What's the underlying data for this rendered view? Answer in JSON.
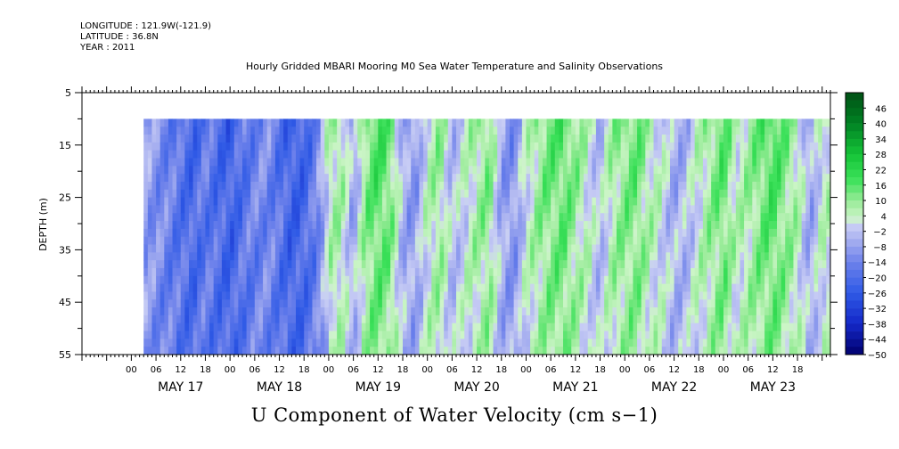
{
  "header": {
    "longitude": "LONGITUDE : 121.9W(-121.9)",
    "latitude": "LATITUDE : 36.8N",
    "year": "YEAR : 2011"
  },
  "chart_data": {
    "type": "heatmap",
    "title": "Hourly Gridded MBARI Mooring M0 Sea Water Temperature and Salinity Observations",
    "xlabel": "U Component of Water Velocity (cm s−1)",
    "ylabel": "DEPTH (m)",
    "y_ticks": [
      5,
      15,
      25,
      35,
      45,
      55
    ],
    "ylim": [
      5,
      55
    ],
    "y_data_range": [
      10,
      55
    ],
    "hour_tick_labels": [
      "00",
      "06",
      "12",
      "18",
      "00",
      "06",
      "12",
      "18",
      "00",
      "06",
      "12",
      "18",
      "00",
      "06",
      "12",
      "18",
      "00",
      "06",
      "12",
      "18",
      "00",
      "06",
      "12",
      "18",
      "00",
      "06",
      "12",
      "18"
    ],
    "day_labels": [
      "MAY 17",
      "MAY 18",
      "MAY 19",
      "MAY 20",
      "MAY 21",
      "MAY 22",
      "MAY 23"
    ],
    "colorbar_labels": [
      "46",
      "40",
      "34",
      "28",
      "22",
      "16",
      "10",
      "4",
      "−2",
      "−8",
      "−14",
      "−20",
      "−26",
      "−32",
      "−38",
      "−44",
      "−50"
    ],
    "colorbar_range": [
      -50,
      52
    ],
    "colorbar_step": 3,
    "colors": {
      "strong_negative": "#00007a",
      "negative": "#2f5ae6",
      "near_zero_neg": "#b4b8f0",
      "near_zero_pos": "#c8f0c0",
      "positive": "#22d64a",
      "strong_positive": "#005a14"
    },
    "time_hours_start": -12,
    "time_hours_end": 170,
    "data_start_hour": 3,
    "time_profile": [
      {
        "t": 3,
        "v": -6
      },
      {
        "t": 6,
        "v": -10
      },
      {
        "t": 9,
        "v": -14
      },
      {
        "t": 12,
        "v": -18
      },
      {
        "t": 15,
        "v": -22
      },
      {
        "t": 18,
        "v": -16
      },
      {
        "t": 21,
        "v": -20
      },
      {
        "t": 24,
        "v": -24
      },
      {
        "t": 27,
        "v": -18
      },
      {
        "t": 30,
        "v": -14
      },
      {
        "t": 33,
        "v": -12
      },
      {
        "t": 36,
        "v": -18
      },
      {
        "t": 39,
        "v": -24
      },
      {
        "t": 42,
        "v": -22
      },
      {
        "t": 45,
        "v": -14
      },
      {
        "t": 48,
        "v": 6
      },
      {
        "t": 51,
        "v": 8
      },
      {
        "t": 54,
        "v": -8
      },
      {
        "t": 57,
        "v": 12
      },
      {
        "t": 60,
        "v": 18
      },
      {
        "t": 63,
        "v": 14
      },
      {
        "t": 66,
        "v": -6
      },
      {
        "t": 69,
        "v": -10
      },
      {
        "t": 72,
        "v": 4
      },
      {
        "t": 75,
        "v": 10
      },
      {
        "t": 78,
        "v": -4
      },
      {
        "t": 81,
        "v": 2
      },
      {
        "t": 84,
        "v": 8
      },
      {
        "t": 87,
        "v": 12
      },
      {
        "t": 90,
        "v": -8
      },
      {
        "t": 93,
        "v": -12
      },
      {
        "t": 96,
        "v": 2
      },
      {
        "t": 99,
        "v": 10
      },
      {
        "t": 102,
        "v": 14
      },
      {
        "t": 105,
        "v": 16
      },
      {
        "t": 108,
        "v": 10
      },
      {
        "t": 111,
        "v": 4
      },
      {
        "t": 114,
        "v": -4
      },
      {
        "t": 117,
        "v": 8
      },
      {
        "t": 120,
        "v": 12
      },
      {
        "t": 123,
        "v": 14
      },
      {
        "t": 126,
        "v": 6
      },
      {
        "t": 129,
        "v": 2
      },
      {
        "t": 132,
        "v": -6
      },
      {
        "t": 135,
        "v": -4
      },
      {
        "t": 138,
        "v": 4
      },
      {
        "t": 141,
        "v": 10
      },
      {
        "t": 144,
        "v": 16
      },
      {
        "t": 147,
        "v": 4
      },
      {
        "t": 150,
        "v": 8
      },
      {
        "t": 153,
        "v": 14
      },
      {
        "t": 156,
        "v": 18
      },
      {
        "t": 159,
        "v": 12
      },
      {
        "t": 162,
        "v": 6
      },
      {
        "t": 165,
        "v": -8
      },
      {
        "t": 168,
        "v": 4
      }
    ]
  }
}
